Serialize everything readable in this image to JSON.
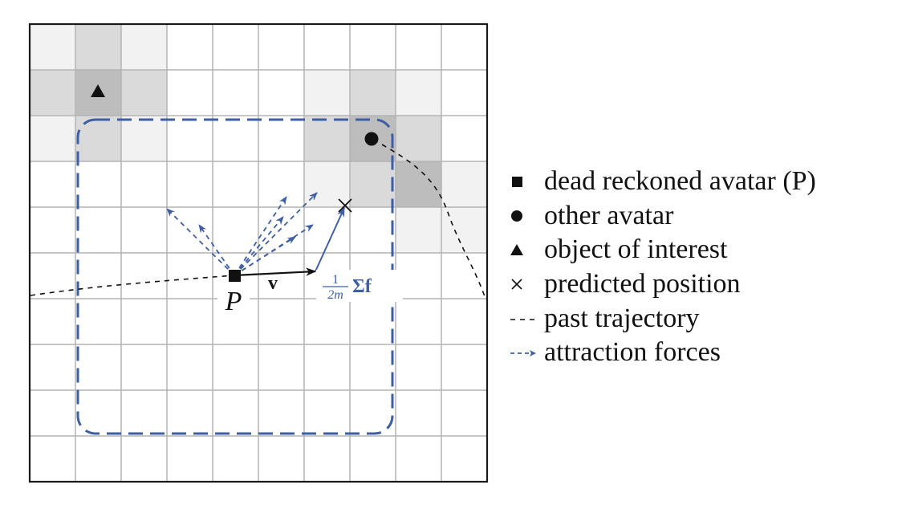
{
  "diagram": {
    "labels": {
      "point": "P",
      "velocity": "v",
      "force_frac_num": "1",
      "force_frac_den": "2m",
      "force_sum": "Σf"
    },
    "grid": {
      "rows": 10,
      "cols": 10
    },
    "shaded_cells": [
      {
        "row": 0,
        "col": 0,
        "shade": "light"
      },
      {
        "row": 0,
        "col": 1,
        "shade": "medium"
      },
      {
        "row": 0,
        "col": 2,
        "shade": "light"
      },
      {
        "row": 1,
        "col": 0,
        "shade": "medium"
      },
      {
        "row": 1,
        "col": 1,
        "shade": "dark"
      },
      {
        "row": 1,
        "col": 2,
        "shade": "medium"
      },
      {
        "row": 1,
        "col": 6,
        "shade": "light"
      },
      {
        "row": 1,
        "col": 7,
        "shade": "medium"
      },
      {
        "row": 1,
        "col": 8,
        "shade": "light"
      },
      {
        "row": 2,
        "col": 0,
        "shade": "light"
      },
      {
        "row": 2,
        "col": 1,
        "shade": "medium"
      },
      {
        "row": 2,
        "col": 2,
        "shade": "light"
      },
      {
        "row": 2,
        "col": 6,
        "shade": "medium"
      },
      {
        "row": 2,
        "col": 7,
        "shade": "dark"
      },
      {
        "row": 2,
        "col": 8,
        "shade": "medium"
      },
      {
        "row": 3,
        "col": 6,
        "shade": "light"
      },
      {
        "row": 3,
        "col": 7,
        "shade": "medium"
      },
      {
        "row": 3,
        "col": 8,
        "shade": "dark"
      },
      {
        "row": 3,
        "col": 9,
        "shade": "light"
      },
      {
        "row": 4,
        "col": 8,
        "shade": "light"
      },
      {
        "row": 4,
        "col": 9,
        "shade": "light"
      }
    ],
    "colors": {
      "grid_line": "#b4b4b4",
      "border": "#1a1a1a",
      "light": "#f2f2f2",
      "medium": "#dadada",
      "dark": "#bdbdbd",
      "blue": "#3f5fa4",
      "black": "#111111"
    }
  },
  "legend": {
    "items": [
      {
        "icon": "square-icon",
        "label": "dead reckoned avatar (P)"
      },
      {
        "icon": "circle-icon",
        "label": "other avatar"
      },
      {
        "icon": "triangle-icon",
        "label": "object of interest"
      },
      {
        "icon": "cross-icon",
        "label": "predicted position"
      },
      {
        "icon": "dashed-line-icon",
        "label": "past trajectory"
      },
      {
        "icon": "dashed-arrow-icon",
        "label": "attraction forces"
      }
    ]
  }
}
